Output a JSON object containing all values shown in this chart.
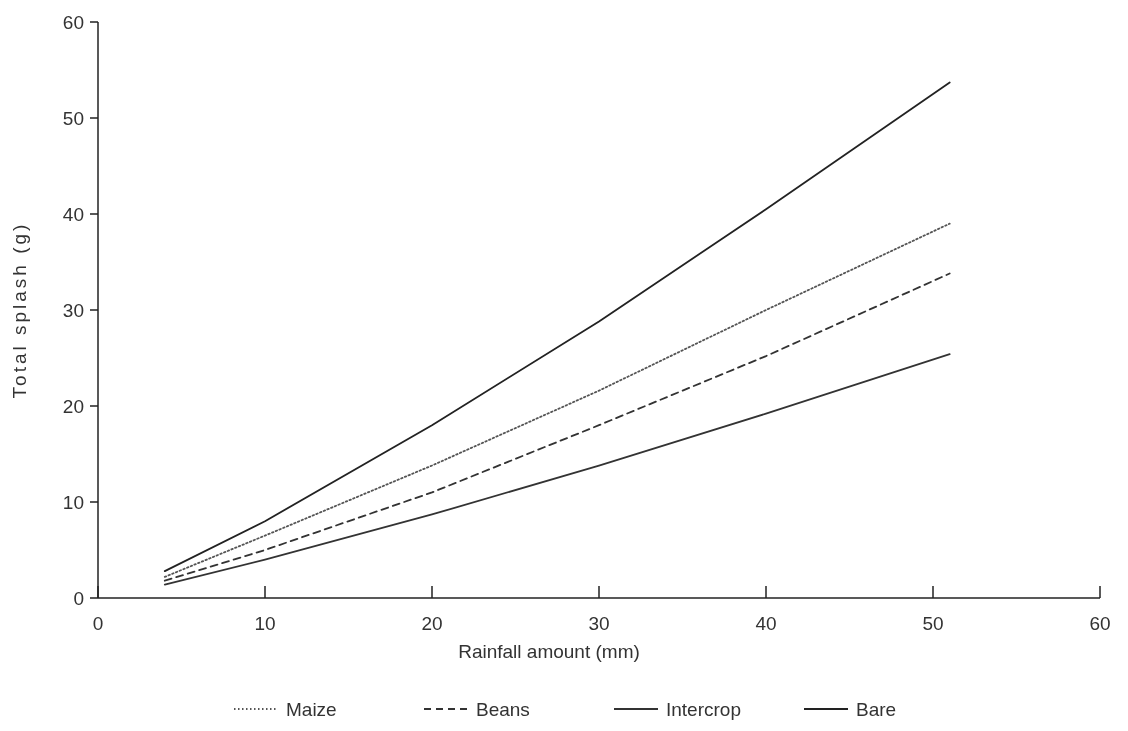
{
  "chart_data": {
    "type": "line",
    "xlabel": "Rainfall amount (mm)",
    "ylabel": "Total splash (g)",
    "xlim": [
      0,
      60
    ],
    "xticks": [
      0,
      10,
      20,
      30,
      40,
      50,
      60
    ],
    "ylim": [
      0,
      60
    ],
    "yticks": [
      0,
      10,
      20,
      30,
      40,
      50,
      60
    ],
    "x": [
      4,
      10,
      20,
      30,
      40,
      51
    ],
    "grid": false,
    "legend": "bottom",
    "marker": "none",
    "series": [
      {
        "name": "Maize",
        "color": "#555555",
        "line_style": "dotted",
        "values": [
          2.2,
          6.5,
          13.8,
          21.6,
          30,
          39
        ]
      },
      {
        "name": "Beans",
        "color": "#333333",
        "line_style": "dashed",
        "values": [
          1.8,
          5,
          11,
          18,
          25.2,
          33.8
        ]
      },
      {
        "name": "Intercrop",
        "color": "#333333",
        "line_style": "solid",
        "values": [
          1.4,
          4,
          8.7,
          13.8,
          19.2,
          25.4
        ]
      },
      {
        "name": "Bare",
        "color": "#222222",
        "line_style": "solid",
        "values": [
          2.8,
          8,
          18,
          28.8,
          40.5,
          53.7
        ]
      }
    ]
  }
}
